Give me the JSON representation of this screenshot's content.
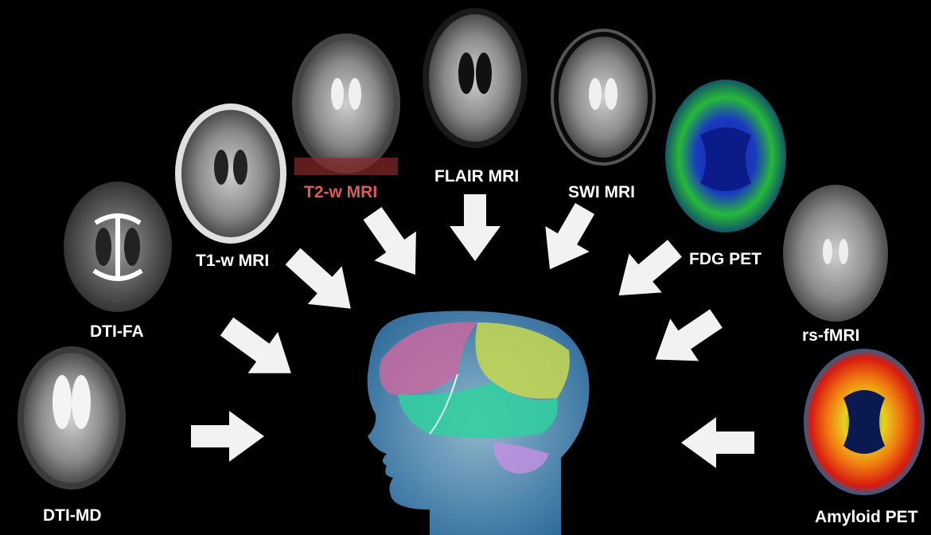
{
  "colors": {
    "background": "#000000",
    "label": "#ffffff",
    "highlight_label": "#e05a5a",
    "arrow": "#f2f2f2"
  },
  "modalities": [
    {
      "key": "dti_fa",
      "label": "DTI-FA",
      "style": "gray"
    },
    {
      "key": "t1",
      "label": "T1-w MRI",
      "style": "gray"
    },
    {
      "key": "t2",
      "label": "T2-w MRI",
      "style": "gray",
      "highlight": true
    },
    {
      "key": "flair",
      "label": "FLAIR MRI",
      "style": "gray"
    },
    {
      "key": "swi",
      "label": "SWI MRI",
      "style": "gray"
    },
    {
      "key": "fdg",
      "label": "FDG PET",
      "style": "pet-green"
    },
    {
      "key": "rsfmri",
      "label": "rs-fMRI",
      "style": "gray"
    },
    {
      "key": "dti_md",
      "label": "DTI-MD",
      "style": "gray"
    },
    {
      "key": "amyloid",
      "label": "Amyloid PET",
      "style": "pet-hot"
    }
  ],
  "center": {
    "icon": "brain-head-icon"
  }
}
